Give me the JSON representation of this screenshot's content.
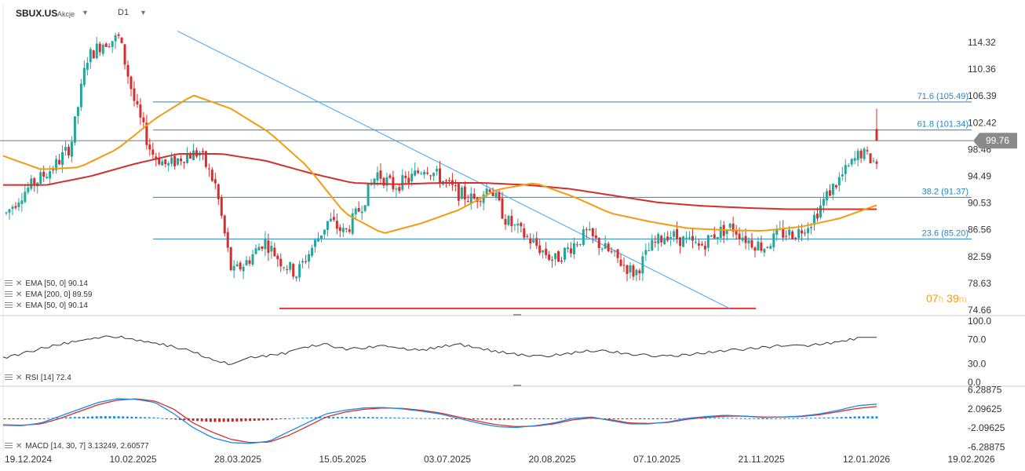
{
  "header": {
    "symbol": "SBUX.US",
    "symbol_type": "Akcje",
    "timeframe": "D1"
  },
  "timer": {
    "hours": "07",
    "h": "h",
    "minutes": "39",
    "m": "m"
  },
  "legends": {
    "ema50a": "EMA [50, 0] 90.14",
    "ema200": "EMA [200, 0] 89.59",
    "ema50b": "EMA [50, 0] 90.14",
    "rsi": "RSI [14] 72.4",
    "macd": "MACD [14, 30, 7] 3.13249, 2.60577"
  },
  "colors": {
    "up": "#26a69a",
    "down": "#d32f2f",
    "ema50": "#f39c12",
    "ema200": "#d32f2f",
    "fib": "#1e88c8",
    "trend": "#42a5f5",
    "support": "#e53935",
    "rsi": "#333333",
    "macd": "#1e88e5",
    "signal": "#d32f2f"
  },
  "chart_data": [
    {
      "type": "candlestick",
      "title": "SBUX.US D1",
      "x_labels": [
        "19.12.2024",
        "10.02.2025",
        "28.03.2025",
        "15.05.2025",
        "03.07.2025",
        "20.08.2025",
        "07.10.2025",
        "21.11.2025",
        "12.01.2026",
        "19.02.2026"
      ],
      "y_ticks": [
        "114.32",
        "110.36",
        "106.39",
        "102.42",
        "98.46",
        "94.49",
        "90.53",
        "86.56",
        "82.59",
        "78.63",
        "74.66"
      ],
      "ylim": [
        74.66,
        116.3
      ],
      "last_price": "99.76",
      "fib_levels": [
        {
          "label": "71.6 (105.49)",
          "value": 105.49
        },
        {
          "label": "61.8 (101.34)",
          "value": 101.34
        },
        {
          "label": "38.2 (91.37)",
          "value": 91.37
        },
        {
          "label": "23.6 (85.20)",
          "value": 85.2
        }
      ],
      "support": 74.9,
      "trendline": [
        [
          0.18,
          116.0
        ],
        [
          0.75,
          74.9
        ]
      ],
      "ema50_values": [
        97.5,
        95.5,
        95.8,
        98.5,
        103,
        106.5,
        104.5,
        101,
        96,
        89,
        86,
        87.5,
        89.5,
        92.5,
        93.5,
        91.5,
        89,
        87.8,
        86.8,
        86.5,
        86.4,
        87,
        88.2,
        90.2
      ],
      "ema200_values": [
        93.2,
        93.2,
        94.5,
        96.3,
        97.8,
        97.8,
        96.8,
        95,
        93.5,
        93.3,
        93.5,
        93.5,
        93.2,
        92.6,
        91.6,
        90.6,
        90.1,
        89.8,
        89.6,
        89.6,
        89.6
      ],
      "close_path": [
        89,
        92,
        94,
        96,
        99,
        112,
        114.3,
        115,
        105,
        98,
        96,
        97.5,
        98,
        93,
        80,
        82,
        85,
        82,
        80,
        84,
        88,
        86,
        90,
        95,
        93,
        94,
        96,
        94,
        92,
        91,
        93,
        88,
        86,
        84,
        82,
        84,
        86,
        84,
        82,
        80,
        84,
        86,
        85,
        84,
        86,
        87,
        85,
        84,
        86,
        86,
        88,
        92,
        95,
        98,
        96.5
      ]
    },
    {
      "type": "line",
      "name": "RSI",
      "y_ticks": [
        "100.0",
        "70.0",
        "30.0",
        "0.0"
      ],
      "ylim": [
        0,
        100
      ],
      "values": [
        40,
        47,
        55,
        62,
        68,
        73,
        75,
        69,
        64,
        58,
        50,
        36,
        30,
        40,
        44,
        48,
        58,
        62,
        54,
        56,
        60,
        55,
        52,
        58,
        62,
        56,
        50,
        46,
        42,
        44,
        48,
        52,
        50,
        46,
        44,
        42,
        45,
        48,
        52,
        54,
        57,
        60,
        59,
        62,
        66,
        72,
        72
      ]
    },
    {
      "type": "line",
      "name": "MACD",
      "y_ticks": [
        "6.28875",
        "2.09625",
        "-2.09625",
        "-6.28875"
      ],
      "ylim": [
        -6.28875,
        6.28875
      ],
      "macd_values": [
        -1.5,
        -1.6,
        -1,
        0.5,
        2,
        3.5,
        4.3,
        4.2,
        3.5,
        1,
        -2,
        -4.2,
        -5.3,
        -5.5,
        -5,
        -3,
        -1,
        1,
        1.8,
        2.3,
        2.4,
        2.1,
        1.6,
        1,
        0,
        -1,
        -1.8,
        -2,
        -1.6,
        -1,
        0,
        0.3,
        -0.5,
        -1.2,
        -1.2,
        -0.8,
        0,
        0.4,
        0.7,
        0.5,
        0.2,
        0.3,
        0.5,
        1,
        1.8,
        2.8,
        3.13
      ],
      "signal_values": [
        -1.4,
        -1.5,
        -1.2,
        0,
        1.5,
        3,
        4,
        4.3,
        3.8,
        2,
        -1,
        -3,
        -4.6,
        -5.3,
        -5.2,
        -3.8,
        -1.8,
        0.3,
        1.4,
        2,
        2.3,
        2.2,
        1.8,
        1.2,
        0.3,
        -0.6,
        -1.4,
        -1.8,
        -1.7,
        -1.2,
        -0.3,
        0.1,
        -0.3,
        -1,
        -1.1,
        -0.9,
        -0.2,
        0.2,
        0.5,
        0.5,
        0.3,
        0.3,
        0.4,
        0.8,
        1.5,
        2.2,
        2.6
      ]
    }
  ]
}
